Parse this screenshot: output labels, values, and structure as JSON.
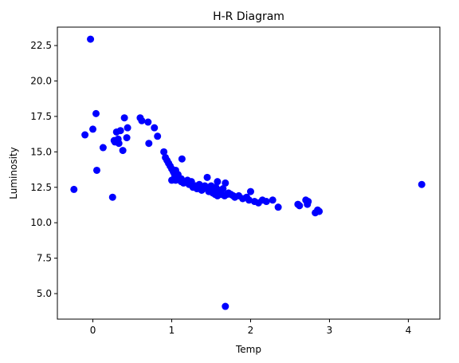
{
  "chart_data": {
    "type": "scatter",
    "title": "H-R Diagram",
    "xlabel": "Temp",
    "ylabel": "Luminosity",
    "xlim": [
      -0.45,
      4.4
    ],
    "ylim": [
      3.2,
      23.8
    ],
    "xticks": [
      0,
      1,
      2,
      3,
      4
    ],
    "xtick_labels": [
      "0",
      "1",
      "2",
      "3",
      "4"
    ],
    "yticks": [
      5.0,
      7.5,
      10.0,
      12.5,
      15.0,
      17.5,
      20.0,
      22.5
    ],
    "ytick_labels": [
      "5.0",
      "7.5",
      "10.0",
      "12.5",
      "15.0",
      "17.5",
      "20.0",
      "22.5"
    ],
    "grid": false,
    "colors": {
      "marker": "#0000ff"
    },
    "series": [
      {
        "x": [
          -0.03,
          -0.24,
          -0.1,
          0.0,
          0.04,
          0.05,
          0.13,
          0.25,
          0.27,
          0.28,
          0.3,
          0.32,
          0.33,
          0.35,
          0.38,
          0.4,
          0.43,
          0.44,
          0.6,
          0.62,
          0.7,
          0.71,
          0.78,
          0.82,
          0.9,
          0.92,
          0.94,
          0.96,
          0.98,
          1.0,
          1.02,
          1.03,
          1.04,
          1.05,
          1.07,
          1.08,
          1.1,
          1.12,
          1.13,
          1.15,
          1.18,
          1.2,
          1.22,
          1.25,
          1.27,
          1.3,
          1.32,
          1.35,
          1.38,
          1.4,
          1.42,
          1.45,
          1.47,
          1.48,
          1.5,
          1.52,
          1.55,
          1.56,
          1.58,
          1.6,
          1.62,
          1.65,
          1.67,
          1.68,
          1.7,
          1.72,
          1.75,
          1.78,
          1.8,
          1.85,
          1.9,
          1.95,
          1.98,
          2.0,
          2.05,
          2.1,
          2.15,
          2.2,
          2.28,
          2.35,
          2.6,
          2.62,
          2.7,
          2.72,
          2.73,
          2.82,
          2.85,
          2.87,
          4.17,
          1.68,
          1.12,
          1.22,
          1.5,
          1.42,
          1.55,
          1.62,
          1.05,
          1.3,
          1.38,
          1.0,
          1.58
        ],
        "y": [
          22.95,
          12.35,
          16.2,
          16.6,
          17.7,
          13.7,
          15.3,
          11.8,
          15.8,
          15.7,
          16.4,
          15.9,
          15.6,
          16.5,
          15.1,
          17.4,
          16.0,
          16.7,
          17.4,
          17.2,
          17.1,
          15.6,
          16.7,
          16.1,
          15.0,
          14.6,
          14.4,
          14.2,
          14.0,
          13.8,
          13.6,
          13.5,
          13.3,
          13.0,
          13.2,
          13.4,
          13.1,
          12.9,
          14.5,
          12.8,
          12.9,
          13.0,
          12.7,
          12.9,
          12.5,
          12.6,
          12.4,
          12.7,
          12.3,
          12.4,
          12.6,
          13.2,
          12.2,
          12.5,
          12.3,
          12.1,
          12.0,
          12.5,
          11.9,
          12.3,
          12.1,
          12.4,
          11.9,
          12.8,
          12.0,
          12.1,
          12.0,
          11.9,
          11.8,
          11.9,
          11.7,
          11.8,
          11.6,
          12.2,
          11.5,
          11.4,
          11.6,
          11.5,
          11.6,
          11.1,
          11.3,
          11.2,
          11.6,
          11.3,
          11.5,
          10.7,
          10.9,
          10.8,
          12.7,
          4.1,
          13.1,
          12.8,
          12.6,
          12.5,
          12.2,
          12.0,
          13.7,
          12.6,
          12.3,
          13.0,
          12.9
        ]
      }
    ]
  }
}
